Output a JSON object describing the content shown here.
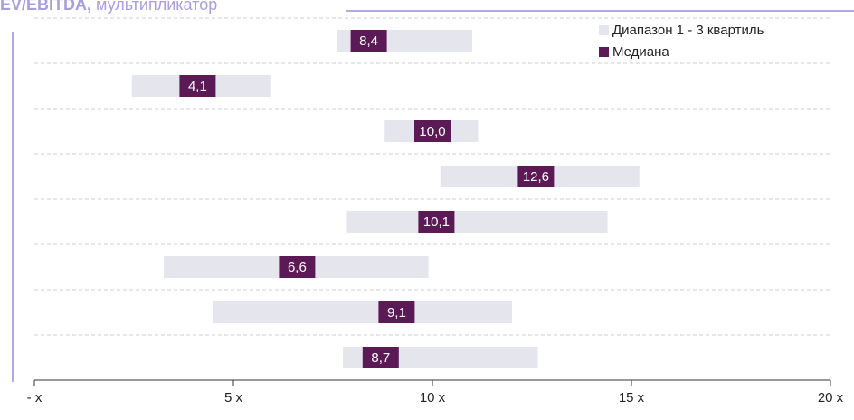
{
  "chart_data": {
    "type": "range-bar",
    "title": "EV/EBITDA,",
    "subtitle": "мультипликатор",
    "series": [
      {
        "name": "Диапазон 1 - 3 квартиль",
        "color": "#e5e5ee",
        "low": [
          7.6,
          2.45,
          8.8,
          10.2,
          7.85,
          3.25,
          4.5,
          7.75
        ],
        "high": [
          11.0,
          5.95,
          11.15,
          15.2,
          14.4,
          9.9,
          12.0,
          12.65
        ]
      },
      {
        "name": "Медиана",
        "color": "#5b1a55",
        "values": [
          8.4,
          4.1,
          10.0,
          12.6,
          10.1,
          6.6,
          9.1,
          8.7
        ],
        "value_labels": [
          "8,4",
          "4,1",
          "10,0",
          "12,6",
          "10,1",
          "6,6",
          "9,1",
          "8,7"
        ]
      }
    ],
    "xlim": [
      0,
      20
    ],
    "xticks": [
      {
        "value": 0,
        "label": "- x"
      },
      {
        "value": 5,
        "label": "5 x"
      },
      {
        "value": 10,
        "label": "10 x"
      },
      {
        "value": 15,
        "label": "15 x"
      },
      {
        "value": 20,
        "label": "20 x"
      }
    ],
    "legend": "top-right"
  }
}
